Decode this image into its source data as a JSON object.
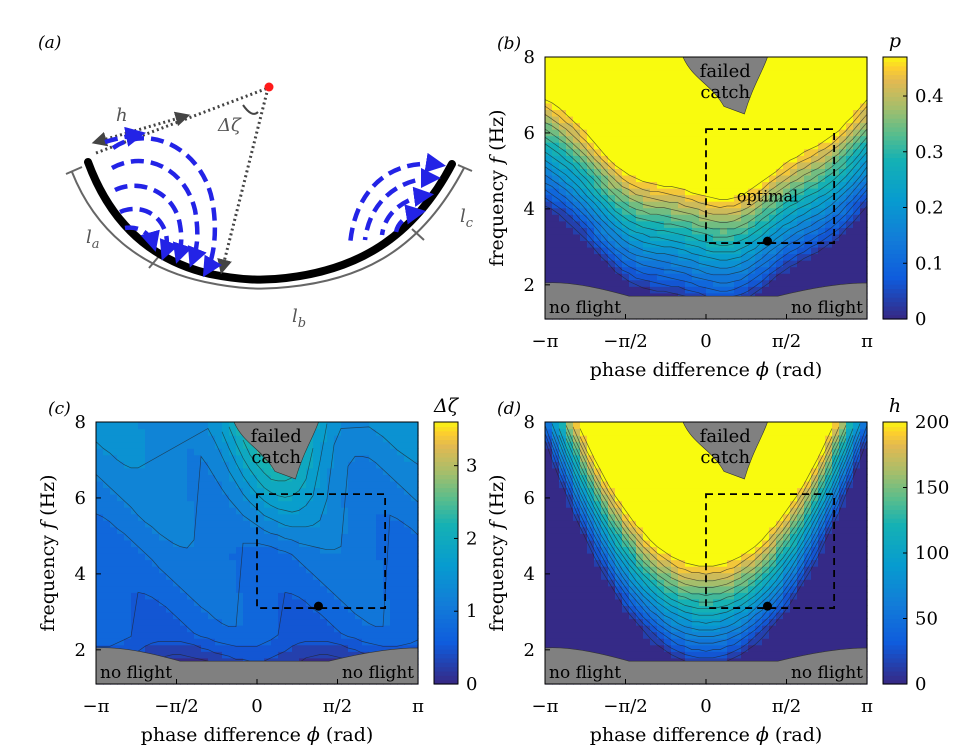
{
  "figure": {
    "panel_a": {
      "label": "(a)",
      "symbols": {
        "h": "h",
        "dzeta": "Δζ",
        "la_base": "l",
        "la_sub": "a",
        "lb_base": "l",
        "lb_sub": "b",
        "lc_base": "l",
        "lc_sub": "c"
      },
      "colors": {
        "wing": "#000000",
        "flow": "#2323e6",
        "pivot": "#ff1a1a",
        "guide": "#444444"
      }
    }
  },
  "chart_data": [
    {
      "type": "contour",
      "panel": "(b)",
      "title": "",
      "xlabel": "phase difference",
      "xlabel_symbol": "ϕ",
      "xlabel_unit": "(rad)",
      "ylabel": "frequency",
      "ylabel_symbol": "f",
      "ylabel_unit": "(Hz)",
      "xlim": [
        -3.1416,
        3.1416
      ],
      "ylim": [
        1.1,
        8
      ],
      "xticks": [
        -3.1416,
        -1.5708,
        0,
        1.5708,
        3.1416
      ],
      "xtick_labels": [
        "−π",
        "−π/2",
        "0",
        "π/2",
        "π"
      ],
      "yticks": [
        2,
        4,
        6,
        8
      ],
      "ytick_labels": [
        "2",
        "4",
        "6",
        "8"
      ],
      "colorbar_label": "p",
      "colorbar_range": [
        0,
        0.47
      ],
      "colorbar_ticks": [
        0,
        0.1,
        0.2,
        0.3,
        0.4
      ],
      "colorbar_tick_labels": [
        "0",
        "0.1",
        "0.2",
        "0.3",
        "0.4"
      ],
      "optimal_box": {
        "phi": [
          0,
          2.5
        ],
        "f": [
          3.1,
          6.1
        ]
      },
      "optimal_point": {
        "phi": 1.2,
        "f": 3.15
      },
      "annotations": [
        "failed\ncatch",
        "no flight",
        "no flight",
        "optimal"
      ]
    },
    {
      "type": "contour",
      "panel": "(c)",
      "xlabel": "phase difference",
      "xlabel_symbol": "ϕ",
      "xlabel_unit": "(rad)",
      "ylabel": "frequency",
      "ylabel_symbol": "f",
      "ylabel_unit": "(Hz)",
      "xlim": [
        -3.1416,
        3.1416
      ],
      "ylim": [
        1.1,
        8
      ],
      "xticks": [
        -3.1416,
        -1.5708,
        0,
        1.5708,
        3.1416
      ],
      "xtick_labels": [
        "−π",
        "−π/2",
        "0",
        "π/2",
        "π"
      ],
      "yticks": [
        2,
        4,
        6,
        8
      ],
      "ytick_labels": [
        "2",
        "4",
        "6",
        "8"
      ],
      "colorbar_label": "Δζ",
      "colorbar_range": [
        0,
        3.6
      ],
      "colorbar_ticks": [
        0,
        1,
        2,
        3
      ],
      "colorbar_tick_labels": [
        "0",
        "1",
        "2",
        "3"
      ],
      "optimal_box": {
        "phi": [
          0,
          2.5
        ],
        "f": [
          3.1,
          6.1
        ]
      },
      "optimal_point": {
        "phi": 1.2,
        "f": 3.15
      },
      "annotations": [
        "failed\ncatch",
        "no flight",
        "no flight"
      ]
    },
    {
      "type": "contour",
      "panel": "(d)",
      "xlabel": "phase difference",
      "xlabel_symbol": "ϕ",
      "xlabel_unit": "(rad)",
      "ylabel": "frequency",
      "ylabel_symbol": "f",
      "ylabel_unit": "(Hz)",
      "xlim": [
        -3.1416,
        3.1416
      ],
      "ylim": [
        1.1,
        8
      ],
      "xticks": [
        -3.1416,
        -1.5708,
        0,
        1.5708,
        3.1416
      ],
      "xtick_labels": [
        "−π",
        "−π/2",
        "0",
        "π/2",
        "π"
      ],
      "yticks": [
        2,
        4,
        6,
        8
      ],
      "ytick_labels": [
        "2",
        "4",
        "6",
        "8"
      ],
      "colorbar_label": "h",
      "colorbar_range": [
        0,
        200
      ],
      "colorbar_ticks": [
        0,
        50,
        100,
        150,
        200
      ],
      "colorbar_tick_labels": [
        "0",
        "50",
        "100",
        "150",
        "200"
      ],
      "optimal_box": {
        "phi": [
          0,
          2.5
        ],
        "f": [
          3.1,
          6.1
        ]
      },
      "optimal_point": {
        "phi": 1.2,
        "f": 3.15
      },
      "annotations": [
        "failed\ncatch",
        "no flight",
        "no flight"
      ]
    }
  ]
}
